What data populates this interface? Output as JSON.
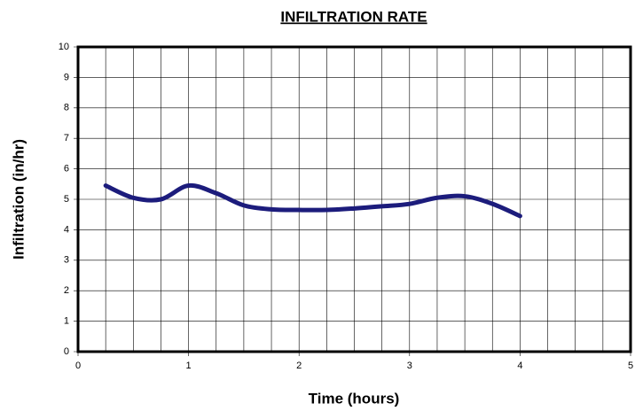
{
  "chart_data": {
    "type": "line",
    "title": "INFILTRATION RATE",
    "x_label": "Time (hours)",
    "y_label": "Infiltration (in/hr)",
    "x": [
      0.25,
      0.5,
      0.75,
      1.0,
      1.25,
      1.5,
      1.75,
      2.0,
      2.25,
      2.5,
      2.75,
      3.0,
      3.25,
      3.5,
      3.75,
      4.0
    ],
    "series": [
      {
        "name": "Infiltration",
        "color": "#1c1c7c",
        "values": [
          5.45,
          5.05,
          5.0,
          5.45,
          5.2,
          4.8,
          4.67,
          4.65,
          4.65,
          4.7,
          4.77,
          4.85,
          5.05,
          5.1,
          4.85,
          4.45
        ]
      }
    ],
    "xlim": [
      0,
      5
    ],
    "xticks": [
      0,
      1,
      2,
      3,
      4,
      5
    ],
    "xgrid": [
      0.25,
      0.5,
      0.75,
      1.25,
      1.5,
      1.75,
      2.25,
      2.5,
      2.75,
      3.25,
      3.5,
      3.75,
      4.25,
      4.5,
      4.75
    ],
    "ylim": [
      0,
      10
    ],
    "yticks": [
      0,
      1,
      2,
      3,
      4,
      5,
      6,
      7,
      8,
      9,
      10
    ],
    "grid": true
  }
}
